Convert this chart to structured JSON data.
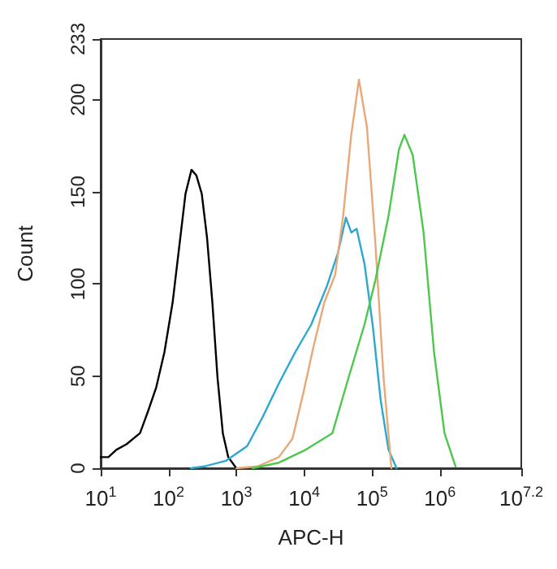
{
  "chart_data": {
    "type": "line",
    "xlabel": "APC-H",
    "ylabel": "Count",
    "log": "x",
    "grid": false,
    "marker": "none",
    "line_style": "solid",
    "xlim": [
      10,
      15848932
    ],
    "xticks": [
      {
        "value": 10,
        "label": "10$^{1}$"
      },
      {
        "value": 100,
        "label": "10$^{2}$"
      },
      {
        "value": 1000,
        "label": "10$^{3}$"
      },
      {
        "value": 10000,
        "label": "10$^{4}$"
      },
      {
        "value": 100000,
        "label": "10$^{5}$"
      },
      {
        "value": 1000000,
        "label": "10$^{6}$"
      },
      {
        "value": 15848932,
        "label": "10$^{7.2}$"
      }
    ],
    "ylim": [
      0,
      233
    ],
    "yticks": [
      0,
      50,
      100,
      150,
      200,
      233
    ],
    "series": [
      {
        "color": "#000000",
        "x": [
          10,
          13,
          17,
          24,
          38,
          50,
          66,
          87,
          115,
          149,
          178,
          218,
          257,
          309,
          370,
          443,
          528,
          632,
          760,
          1000
        ],
        "values": [
          6,
          6,
          10,
          13,
          19,
          31,
          44,
          63,
          90,
          125,
          149,
          162,
          159,
          149,
          125,
          90,
          49,
          19,
          6,
          0
        ]
      },
      {
        "color": "#2aa8d0",
        "x": [
          214,
          337,
          700,
          1445,
          2460,
          4230,
          7370,
          12700,
          21700,
          31500,
          41200,
          49400,
          59300,
          77400,
          102000,
          134000,
          175000,
          230000
        ],
        "values": [
          0,
          1,
          4,
          12,
          28,
          46,
          63,
          78,
          99,
          117,
          136,
          128,
          130,
          111,
          78,
          37,
          10,
          0
        ]
      },
      {
        "color": "#e8a878",
        "x": [
          1000,
          2050,
          4230,
          6700,
          9600,
          13700,
          19800,
          28600,
          37500,
          49400,
          64100,
          84200,
          112000,
          148000,
          193000
        ],
        "values": [
          0,
          1,
          6,
          16,
          40,
          66,
          90,
          105,
          137,
          181,
          211,
          185,
          122,
          49,
          0
        ]
      },
      {
        "color": "#4cc84c",
        "x": [
          1730,
          4230,
          10500,
          26000,
          44900,
          77400,
          112000,
          175000,
          249000,
          300000,
          398000,
          575000,
          820000,
          1170000,
          1700000
        ],
        "values": [
          0,
          3,
          10,
          19,
          49,
          78,
          102,
          137,
          173,
          181,
          170,
          128,
          63,
          19,
          1
        ]
      }
    ]
  }
}
